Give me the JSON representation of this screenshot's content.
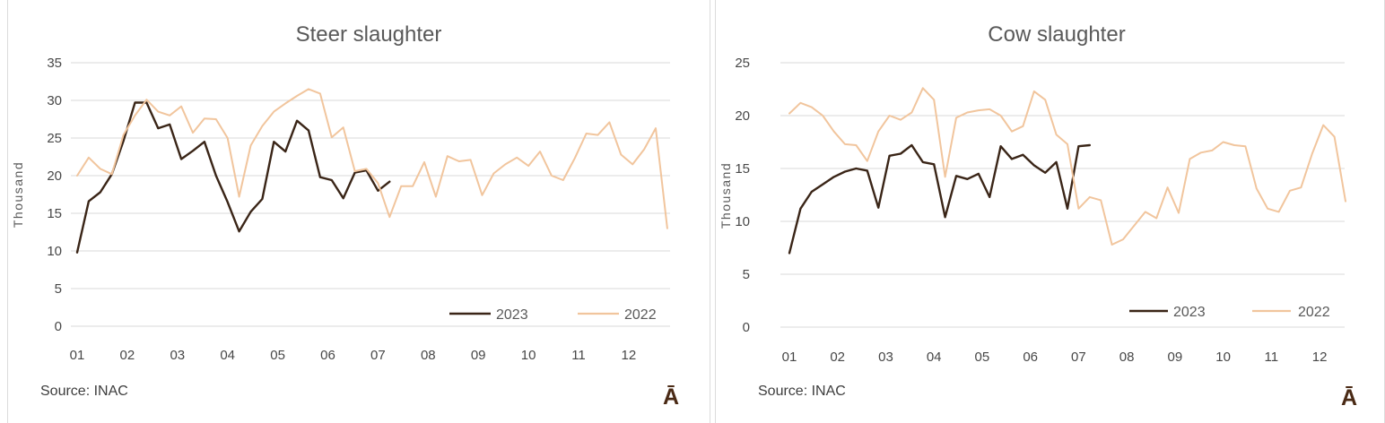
{
  "page": {
    "background": "#ffffff",
    "panel_border_color": "#dcdcdc"
  },
  "chart_data": [
    {
      "type": "line",
      "title": "Steer slaughter",
      "ylabel": "Thousand",
      "xlabel": "",
      "x_unit": "week-of-year",
      "x_tick_labels": [
        "01",
        "02",
        "03",
        "04",
        "05",
        "06",
        "07",
        "08",
        "09",
        "10",
        "11",
        "12"
      ],
      "y_ticks": [
        0,
        5,
        10,
        15,
        20,
        25,
        30,
        35
      ],
      "ylim": [
        0,
        35
      ],
      "grid": true,
      "legend_position": "inside-bottom-right",
      "source": "Source: INAC",
      "corner_glyph": "Ā",
      "colors": {
        "gridline": "#d9d9d9",
        "axis_text": "#474747",
        "title_text": "#595959",
        "source_text": "#3d3d3d",
        "glyph": "#4a2a15"
      },
      "series": [
        {
          "name": "2023",
          "color": "#3a2517",
          "values": [
            9.8,
            16.6,
            17.8,
            20.2,
            24.6,
            29.7,
            29.7,
            26.3,
            26.8,
            22.2,
            23.3,
            24.5,
            20.0,
            16.5,
            12.6,
            15.2,
            16.9,
            24.5,
            23.2,
            27.3,
            26.0,
            19.8,
            19.4,
            17.0,
            20.4,
            20.7,
            18.0,
            19.2
          ]
        },
        {
          "name": "2022",
          "color": "#f1c59d",
          "values": [
            20.0,
            22.4,
            20.9,
            20.2,
            25.4,
            28.0,
            30.1,
            28.5,
            28.0,
            29.2,
            25.7,
            27.6,
            27.5,
            25.0,
            17.2,
            24.0,
            26.6,
            28.5,
            29.6,
            30.6,
            31.5,
            30.9,
            25.1,
            26.4,
            20.6,
            20.9,
            19.0,
            14.5,
            18.6,
            18.6,
            21.8,
            17.2,
            22.6,
            21.9,
            22.1,
            17.4,
            20.3,
            21.5,
            22.4,
            21.3,
            23.2,
            20.0,
            19.4,
            22.3,
            25.6,
            25.4,
            27.1,
            22.8,
            21.5,
            23.5,
            26.3,
            13.0
          ]
        }
      ]
    },
    {
      "type": "line",
      "title": "Cow slaughter",
      "ylabel": "Thousand",
      "xlabel": "",
      "x_unit": "week-of-year",
      "x_tick_labels": [
        "01",
        "02",
        "03",
        "04",
        "05",
        "06",
        "07",
        "08",
        "09",
        "10",
        "11",
        "12"
      ],
      "y_ticks": [
        0,
        5,
        10,
        15,
        20,
        25
      ],
      "ylim": [
        0,
        25
      ],
      "grid": true,
      "legend_position": "inside-bottom-right",
      "source": "Source: INAC",
      "corner_glyph": "Ā",
      "colors": {
        "gridline": "#d9d9d9",
        "axis_text": "#474747",
        "title_text": "#595959",
        "source_text": "#3d3d3d",
        "glyph": "#4a2a15"
      },
      "series": [
        {
          "name": "2023",
          "color": "#3a2517",
          "values": [
            7.0,
            11.2,
            12.8,
            13.5,
            14.2,
            14.7,
            15.0,
            14.8,
            11.3,
            16.2,
            16.4,
            17.2,
            15.6,
            15.4,
            10.4,
            14.3,
            14.0,
            14.5,
            12.3,
            17.1,
            15.9,
            16.3,
            15.3,
            14.6,
            15.6,
            11.2,
            17.1,
            17.2
          ]
        },
        {
          "name": "2022",
          "color": "#f1c59d",
          "values": [
            20.2,
            21.2,
            20.8,
            20.0,
            18.5,
            17.3,
            17.2,
            15.7,
            18.5,
            20.0,
            19.6,
            20.3,
            22.6,
            21.5,
            14.2,
            19.8,
            20.3,
            20.5,
            20.6,
            20.0,
            18.5,
            19.0,
            22.3,
            21.5,
            18.2,
            17.3,
            11.2,
            12.3,
            12.0,
            7.8,
            8.3,
            9.6,
            10.9,
            10.3,
            13.2,
            10.8,
            15.9,
            16.5,
            16.7,
            17.5,
            17.2,
            17.1,
            13.1,
            11.2,
            10.9,
            12.9,
            13.2,
            16.4,
            19.1,
            18.0,
            11.9
          ]
        }
      ]
    }
  ]
}
